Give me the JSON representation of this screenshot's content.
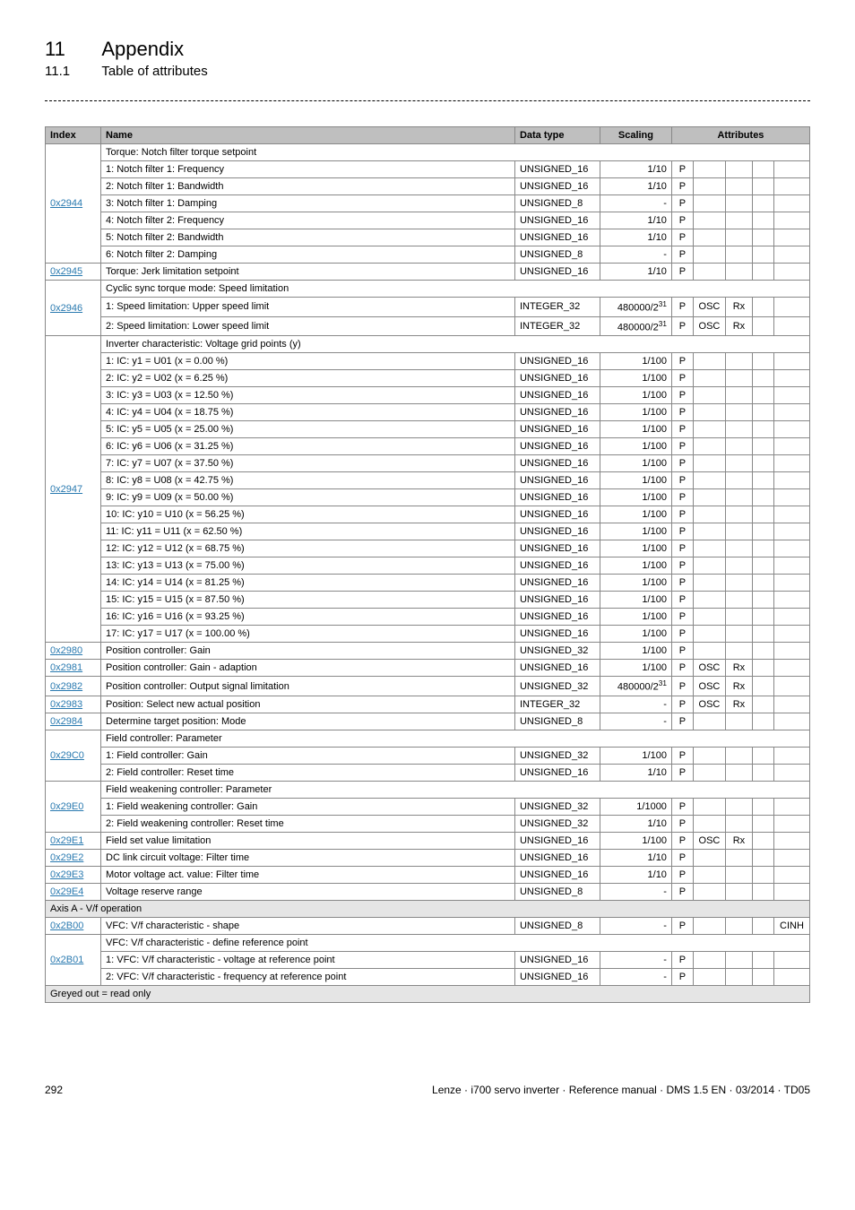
{
  "meta": {
    "section_num": "11",
    "section_title": "Appendix",
    "subsection_num": "11.1",
    "subsection_title": "Table of attributes",
    "page_num": "292",
    "footer_right": "Lenze · i700 servo inverter · Reference manual · DMS 1.5 EN · 03/2014 · TD05"
  },
  "headers": {
    "index": "Index",
    "name": "Name",
    "dtype": "Data type",
    "scaling": "Scaling",
    "attributes": "Attributes"
  },
  "section_axis": "Axis A - V/f operation",
  "greyed": "Greyed out = read only",
  "rows": [
    {
      "index": "0x2944",
      "subrows": [
        {
          "name": "Torque: Notch filter torque setpoint",
          "span": true
        },
        {
          "name": "1: Notch filter 1: Frequency",
          "dtype": "UNSIGNED_16",
          "scaling": "1/10",
          "a": [
            "P",
            "",
            "",
            "",
            ""
          ]
        },
        {
          "name": "2: Notch filter 1: Bandwidth",
          "dtype": "UNSIGNED_16",
          "scaling": "1/10",
          "a": [
            "P",
            "",
            "",
            "",
            ""
          ]
        },
        {
          "name": "3: Notch filter 1: Damping",
          "dtype": "UNSIGNED_8",
          "scaling": "-",
          "a": [
            "P",
            "",
            "",
            "",
            ""
          ]
        },
        {
          "name": "4: Notch filter 2: Frequency",
          "dtype": "UNSIGNED_16",
          "scaling": "1/10",
          "a": [
            "P",
            "",
            "",
            "",
            ""
          ]
        },
        {
          "name": "5: Notch filter 2: Bandwidth",
          "dtype": "UNSIGNED_16",
          "scaling": "1/10",
          "a": [
            "P",
            "",
            "",
            "",
            ""
          ]
        },
        {
          "name": "6: Notch filter 2: Damping",
          "dtype": "UNSIGNED_8",
          "scaling": "-",
          "a": [
            "P",
            "",
            "",
            "",
            ""
          ]
        }
      ]
    },
    {
      "index": "0x2945",
      "subrows": [
        {
          "name": "Torque: Jerk limitation setpoint",
          "dtype": "UNSIGNED_16",
          "scaling": "1/10",
          "a": [
            "P",
            "",
            "",
            "",
            ""
          ]
        }
      ]
    },
    {
      "index": "0x2946",
      "subrows": [
        {
          "name": "Cyclic sync torque mode: Speed limitation",
          "span": true
        },
        {
          "name": "1: Speed limitation: Upper speed limit",
          "dtype": "INTEGER_32",
          "scaling": "480000/2^31",
          "a": [
            "P",
            "OSC",
            "Rx",
            "",
            ""
          ]
        },
        {
          "name": "2: Speed limitation: Lower speed limit",
          "dtype": "INTEGER_32",
          "scaling": "480000/2^31",
          "a": [
            "P",
            "OSC",
            "Rx",
            "",
            ""
          ]
        }
      ]
    },
    {
      "index": "0x2947",
      "subrows": [
        {
          "name": "Inverter characteristic: Voltage grid points (y)",
          "span": true
        },
        {
          "name": "1: IC: y1 = U01 (x = 0.00 %)",
          "dtype": "UNSIGNED_16",
          "scaling": "1/100",
          "a": [
            "P",
            "",
            "",
            "",
            ""
          ]
        },
        {
          "name": "2: IC: y2 = U02 (x = 6.25 %)",
          "dtype": "UNSIGNED_16",
          "scaling": "1/100",
          "a": [
            "P",
            "",
            "",
            "",
            ""
          ]
        },
        {
          "name": "3: IC: y3 = U03 (x = 12.50 %)",
          "dtype": "UNSIGNED_16",
          "scaling": "1/100",
          "a": [
            "P",
            "",
            "",
            "",
            ""
          ]
        },
        {
          "name": "4: IC: y4 = U04 (x = 18.75 %)",
          "dtype": "UNSIGNED_16",
          "scaling": "1/100",
          "a": [
            "P",
            "",
            "",
            "",
            ""
          ]
        },
        {
          "name": "5: IC: y5 = U05 (x = 25.00 %)",
          "dtype": "UNSIGNED_16",
          "scaling": "1/100",
          "a": [
            "P",
            "",
            "",
            "",
            ""
          ]
        },
        {
          "name": "6: IC: y6 = U06 (x = 31.25 %)",
          "dtype": "UNSIGNED_16",
          "scaling": "1/100",
          "a": [
            "P",
            "",
            "",
            "",
            ""
          ]
        },
        {
          "name": "7: IC: y7 = U07 (x = 37.50 %)",
          "dtype": "UNSIGNED_16",
          "scaling": "1/100",
          "a": [
            "P",
            "",
            "",
            "",
            ""
          ]
        },
        {
          "name": "8: IC: y8 = U08 (x = 42.75 %)",
          "dtype": "UNSIGNED_16",
          "scaling": "1/100",
          "a": [
            "P",
            "",
            "",
            "",
            ""
          ]
        },
        {
          "name": "9: IC: y9 = U09 (x = 50.00 %)",
          "dtype": "UNSIGNED_16",
          "scaling": "1/100",
          "a": [
            "P",
            "",
            "",
            "",
            ""
          ]
        },
        {
          "name": "10: IC: y10 = U10 (x = 56.25 %)",
          "dtype": "UNSIGNED_16",
          "scaling": "1/100",
          "a": [
            "P",
            "",
            "",
            "",
            ""
          ]
        },
        {
          "name": "11: IC: y11 = U11 (x = 62.50 %)",
          "dtype": "UNSIGNED_16",
          "scaling": "1/100",
          "a": [
            "P",
            "",
            "",
            "",
            ""
          ]
        },
        {
          "name": "12: IC: y12 = U12 (x = 68.75 %)",
          "dtype": "UNSIGNED_16",
          "scaling": "1/100",
          "a": [
            "P",
            "",
            "",
            "",
            ""
          ]
        },
        {
          "name": "13: IC: y13 = U13 (x = 75.00 %)",
          "dtype": "UNSIGNED_16",
          "scaling": "1/100",
          "a": [
            "P",
            "",
            "",
            "",
            ""
          ]
        },
        {
          "name": "14: IC: y14 = U14 (x = 81.25 %)",
          "dtype": "UNSIGNED_16",
          "scaling": "1/100",
          "a": [
            "P",
            "",
            "",
            "",
            ""
          ]
        },
        {
          "name": "15: IC: y15 = U15 (x = 87.50 %)",
          "dtype": "UNSIGNED_16",
          "scaling": "1/100",
          "a": [
            "P",
            "",
            "",
            "",
            ""
          ]
        },
        {
          "name": "16: IC: y16 = U16 (x = 93.25 %)",
          "dtype": "UNSIGNED_16",
          "scaling": "1/100",
          "a": [
            "P",
            "",
            "",
            "",
            ""
          ]
        },
        {
          "name": "17: IC: y17 = U17 (x = 100.00 %)",
          "dtype": "UNSIGNED_16",
          "scaling": "1/100",
          "a": [
            "P",
            "",
            "",
            "",
            ""
          ]
        }
      ]
    },
    {
      "index": "0x2980",
      "subrows": [
        {
          "name": "Position controller: Gain",
          "dtype": "UNSIGNED_32",
          "scaling": "1/100",
          "a": [
            "P",
            "",
            "",
            "",
            ""
          ]
        }
      ]
    },
    {
      "index": "0x2981",
      "subrows": [
        {
          "name": "Position controller: Gain - adaption",
          "dtype": "UNSIGNED_16",
          "scaling": "1/100",
          "a": [
            "P",
            "OSC",
            "Rx",
            "",
            ""
          ]
        }
      ]
    },
    {
      "index": "0x2982",
      "subrows": [
        {
          "name": "Position controller: Output signal limitation",
          "dtype": "UNSIGNED_32",
          "scaling": "480000/2^31",
          "a": [
            "P",
            "OSC",
            "Rx",
            "",
            ""
          ]
        }
      ]
    },
    {
      "index": "0x2983",
      "subrows": [
        {
          "name": "Position: Select new actual position",
          "dtype": "INTEGER_32",
          "scaling": "-",
          "a": [
            "P",
            "OSC",
            "Rx",
            "",
            ""
          ]
        }
      ]
    },
    {
      "index": "0x2984",
      "subrows": [
        {
          "name": "Determine target position: Mode",
          "dtype": "UNSIGNED_8",
          "scaling": "-",
          "a": [
            "P",
            "",
            "",
            "",
            ""
          ]
        }
      ]
    },
    {
      "index": "0x29C0",
      "subrows": [
        {
          "name": "Field controller: Parameter",
          "span": true
        },
        {
          "name": "1: Field controller: Gain",
          "dtype": "UNSIGNED_32",
          "scaling": "1/100",
          "a": [
            "P",
            "",
            "",
            "",
            ""
          ]
        },
        {
          "name": "2: Field controller: Reset time",
          "dtype": "UNSIGNED_16",
          "scaling": "1/10",
          "a": [
            "P",
            "",
            "",
            "",
            ""
          ]
        }
      ]
    },
    {
      "index": "0x29E0",
      "subrows": [
        {
          "name": "Field weakening controller: Parameter",
          "span": true
        },
        {
          "name": "1: Field weakening controller: Gain",
          "dtype": "UNSIGNED_32",
          "scaling": "1/1000",
          "a": [
            "P",
            "",
            "",
            "",
            ""
          ]
        },
        {
          "name": "2: Field weakening controller: Reset time",
          "dtype": "UNSIGNED_32",
          "scaling": "1/10",
          "a": [
            "P",
            "",
            "",
            "",
            ""
          ]
        }
      ]
    },
    {
      "index": "0x29E1",
      "subrows": [
        {
          "name": "Field set value limitation",
          "dtype": "UNSIGNED_16",
          "scaling": "1/100",
          "a": [
            "P",
            "OSC",
            "Rx",
            "",
            ""
          ]
        }
      ]
    },
    {
      "index": "0x29E2",
      "subrows": [
        {
          "name": "DC link circuit voltage: Filter time",
          "dtype": "UNSIGNED_16",
          "scaling": "1/10",
          "a": [
            "P",
            "",
            "",
            "",
            ""
          ]
        }
      ]
    },
    {
      "index": "0x29E3",
      "subrows": [
        {
          "name": "Motor voltage act. value: Filter time",
          "dtype": "UNSIGNED_16",
          "scaling": "1/10",
          "a": [
            "P",
            "",
            "",
            "",
            ""
          ]
        }
      ]
    },
    {
      "index": "0x29E4",
      "subrows": [
        {
          "name": "Voltage reserve range",
          "dtype": "UNSIGNED_8",
          "scaling": "-",
          "a": [
            "P",
            "",
            "",
            "",
            ""
          ]
        }
      ]
    }
  ],
  "rows_axis": [
    {
      "index": "0x2B00",
      "subrows": [
        {
          "name": "VFC: V/f characteristic - shape",
          "dtype": "UNSIGNED_8",
          "scaling": "-",
          "a": [
            "P",
            "",
            "",
            "",
            "CINH"
          ]
        }
      ]
    },
    {
      "index": "0x2B01",
      "subrows": [
        {
          "name": "VFC: V/f characteristic - define reference point",
          "span": true
        },
        {
          "name": "1: VFC: V/f characteristic - voltage at reference point",
          "dtype": "UNSIGNED_16",
          "scaling": "-",
          "a": [
            "P",
            "",
            "",
            "",
            ""
          ]
        },
        {
          "name": "2: VFC: V/f characteristic - frequency at reference point",
          "dtype": "UNSIGNED_16",
          "scaling": "-",
          "a": [
            "P",
            "",
            "",
            "",
            ""
          ]
        }
      ]
    }
  ]
}
